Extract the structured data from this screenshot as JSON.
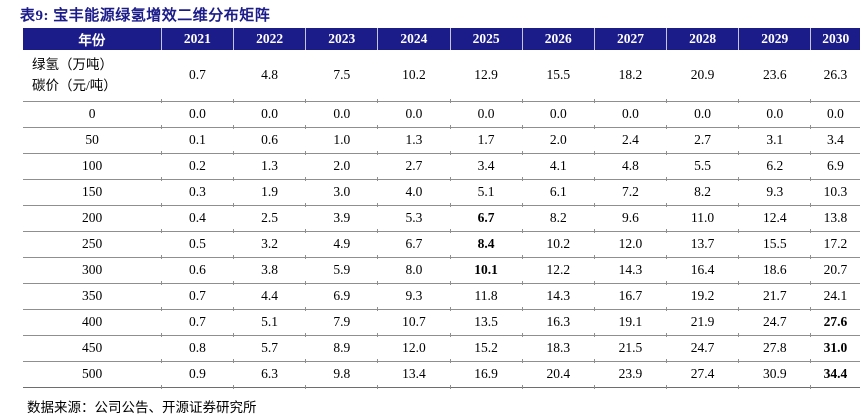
{
  "title": "表9: 宝丰能源绿氢增效二维分布矩阵",
  "source": "数据来源：公司公告、开源证券研究所",
  "colors": {
    "header_bg": "#1B1B8A",
    "header_text": "#FFFFFF",
    "title_text": "#1B1B8A",
    "rule_gray": "#8F8F8F"
  },
  "chart_data": {
    "type": "table",
    "corner_label": "年份",
    "years": [
      "2021",
      "2022",
      "2023",
      "2024",
      "2025",
      "2026",
      "2027",
      "2028",
      "2029",
      "2030"
    ],
    "green_hydrogen_row": {
      "label_lines": [
        "绿氢（万吨）",
        "碳价（元/吨）"
      ],
      "values": [
        "0.7",
        "4.8",
        "7.5",
        "10.2",
        "12.9",
        "15.5",
        "18.2",
        "20.9",
        "23.6",
        "26.3"
      ]
    },
    "carbon_price_rows": [
      {
        "label": "0",
        "values": [
          "0.0",
          "0.0",
          "0.0",
          "0.0",
          "0.0",
          "0.0",
          "0.0",
          "0.0",
          "0.0",
          "0.0"
        ],
        "bold_cols": []
      },
      {
        "label": "50",
        "values": [
          "0.1",
          "0.6",
          "1.0",
          "1.3",
          "1.7",
          "2.0",
          "2.4",
          "2.7",
          "3.1",
          "3.4"
        ],
        "bold_cols": []
      },
      {
        "label": "100",
        "values": [
          "0.2",
          "1.3",
          "2.0",
          "2.7",
          "3.4",
          "4.1",
          "4.8",
          "5.5",
          "6.2",
          "6.9"
        ],
        "bold_cols": []
      },
      {
        "label": "150",
        "values": [
          "0.3",
          "1.9",
          "3.0",
          "4.0",
          "5.1",
          "6.1",
          "7.2",
          "8.2",
          "9.3",
          "10.3"
        ],
        "bold_cols": []
      },
      {
        "label": "200",
        "values": [
          "0.4",
          "2.5",
          "3.9",
          "5.3",
          "6.7",
          "8.2",
          "9.6",
          "11.0",
          "12.4",
          "13.8"
        ],
        "bold_cols": [
          4
        ]
      },
      {
        "label": "250",
        "values": [
          "0.5",
          "3.2",
          "4.9",
          "6.7",
          "8.4",
          "10.2",
          "12.0",
          "13.7",
          "15.5",
          "17.2"
        ],
        "bold_cols": [
          4
        ]
      },
      {
        "label": "300",
        "values": [
          "0.6",
          "3.8",
          "5.9",
          "8.0",
          "10.1",
          "12.2",
          "14.3",
          "16.4",
          "18.6",
          "20.7"
        ],
        "bold_cols": [
          4
        ]
      },
      {
        "label": "350",
        "values": [
          "0.7",
          "4.4",
          "6.9",
          "9.3",
          "11.8",
          "14.3",
          "16.7",
          "19.2",
          "21.7",
          "24.1"
        ],
        "bold_cols": []
      },
      {
        "label": "400",
        "values": [
          "0.7",
          "5.1",
          "7.9",
          "10.7",
          "13.5",
          "16.3",
          "19.1",
          "21.9",
          "24.7",
          "27.6"
        ],
        "bold_cols": [
          9
        ]
      },
      {
        "label": "450",
        "values": [
          "0.8",
          "5.7",
          "8.9",
          "12.0",
          "15.2",
          "18.3",
          "21.5",
          "24.7",
          "27.8",
          "31.0"
        ],
        "bold_cols": [
          9
        ]
      },
      {
        "label": "500",
        "values": [
          "0.9",
          "6.3",
          "9.8",
          "13.4",
          "16.9",
          "20.4",
          "23.9",
          "27.4",
          "30.9",
          "34.4"
        ],
        "bold_cols": [
          9
        ]
      }
    ]
  }
}
